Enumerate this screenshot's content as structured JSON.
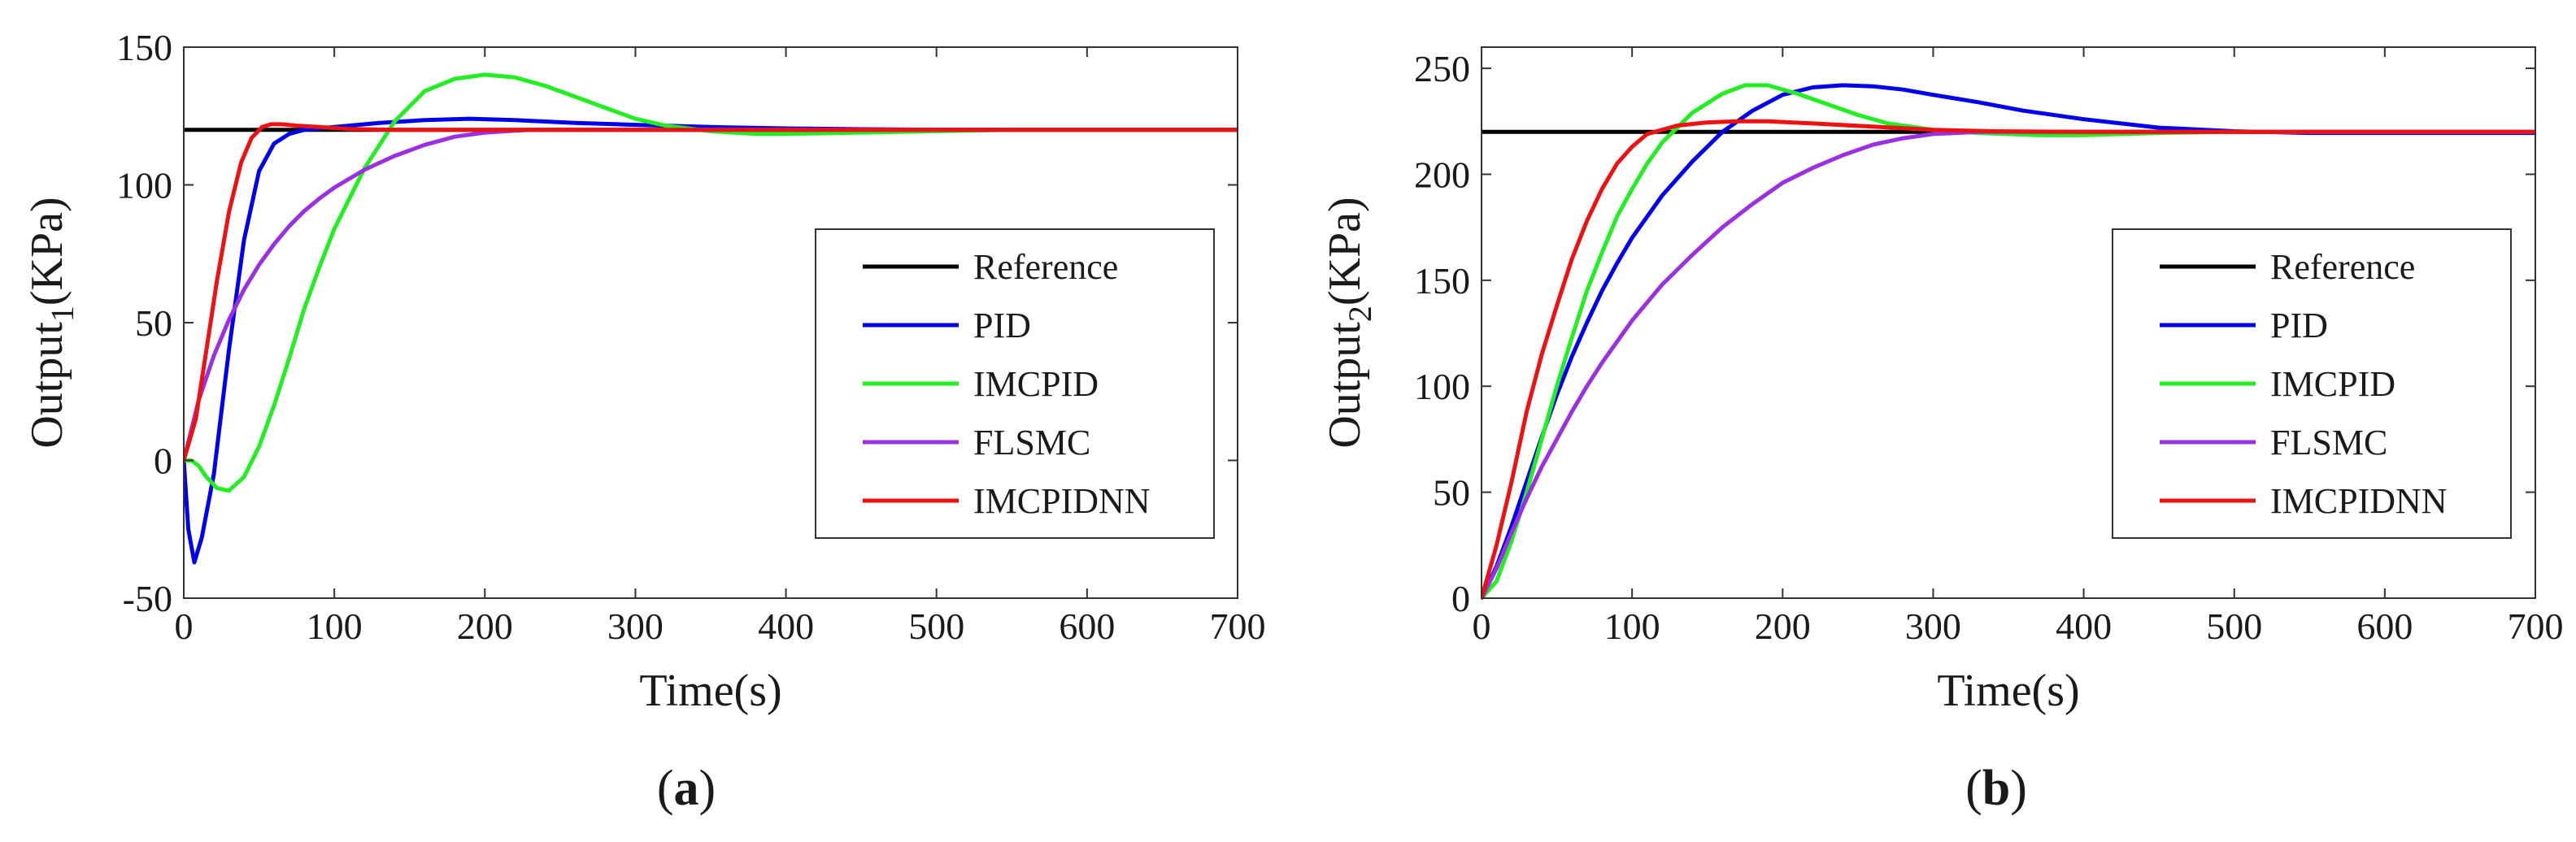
{
  "chart_data": [
    {
      "type": "line",
      "panel_label": "a",
      "xlabel": "Time(s)",
      "ylabel": {
        "prefix": "Output",
        "subscript": "1",
        "suffix": "(KPa)"
      },
      "xlim": [
        0,
        700
      ],
      "ylim": [
        -50,
        150
      ],
      "xticks": [
        "0",
        "100",
        "200",
        "300",
        "400",
        "500",
        "600",
        "700"
      ],
      "yticks": [
        "-50",
        "0",
        "50",
        "100",
        "150"
      ],
      "grid": false,
      "legend_position": "center-right",
      "series": [
        {
          "name": "Reference",
          "color": "#000000",
          "points": [
            [
              0,
              120
            ],
            [
              700,
              120
            ]
          ]
        },
        {
          "name": "PID",
          "color": "#0000ee",
          "points": [
            [
              0,
              0
            ],
            [
              3,
              -25
            ],
            [
              7,
              -37
            ],
            [
              12,
              -28
            ],
            [
              20,
              -5
            ],
            [
              30,
              40
            ],
            [
              40,
              80
            ],
            [
              50,
              105
            ],
            [
              60,
              115
            ],
            [
              70,
              118.5
            ],
            [
              80,
              120
            ],
            [
              100,
              121
            ],
            [
              130,
              122.5
            ],
            [
              160,
              123.5
            ],
            [
              190,
              124
            ],
            [
              220,
              123.5
            ],
            [
              260,
              122.5
            ],
            [
              300,
              121.8
            ],
            [
              350,
              121
            ],
            [
              400,
              120.5
            ],
            [
              450,
              120.2
            ],
            [
              500,
              120
            ],
            [
              550,
              120
            ],
            [
              700,
              120
            ]
          ]
        },
        {
          "name": "IMCPID",
          "color": "#22ee22",
          "points": [
            [
              0,
              0
            ],
            [
              5,
              0
            ],
            [
              10,
              -2
            ],
            [
              15,
              -6
            ],
            [
              22,
              -10
            ],
            [
              30,
              -11
            ],
            [
              40,
              -6
            ],
            [
              50,
              5
            ],
            [
              60,
              20
            ],
            [
              70,
              37
            ],
            [
              80,
              55
            ],
            [
              90,
              70
            ],
            [
              100,
              84
            ],
            [
              120,
              106
            ],
            [
              140,
              123
            ],
            [
              160,
              134
            ],
            [
              180,
              138.5
            ],
            [
              200,
              140
            ],
            [
              220,
              139
            ],
            [
              240,
              136
            ],
            [
              260,
              132
            ],
            [
              280,
              128
            ],
            [
              300,
              124
            ],
            [
              320,
              121.5
            ],
            [
              350,
              119.5
            ],
            [
              380,
              118.5
            ],
            [
              400,
              118.5
            ],
            [
              450,
              119
            ],
            [
              500,
              119.5
            ],
            [
              550,
              120
            ],
            [
              700,
              120
            ]
          ]
        },
        {
          "name": "FLSMC",
          "color": "#9b30e0",
          "points": [
            [
              0,
              0
            ],
            [
              10,
              22
            ],
            [
              20,
              38
            ],
            [
              30,
              51
            ],
            [
              40,
              62
            ],
            [
              50,
              71
            ],
            [
              60,
              78.5
            ],
            [
              70,
              85
            ],
            [
              80,
              90.5
            ],
            [
              90,
              95
            ],
            [
              100,
              99
            ],
            [
              120,
              105.5
            ],
            [
              140,
              110.5
            ],
            [
              160,
              114.5
            ],
            [
              180,
              117.5
            ],
            [
              200,
              119
            ],
            [
              230,
              120
            ],
            [
              700,
              120
            ]
          ]
        },
        {
          "name": "IMCPIDNN",
          "color": "#ee1111",
          "points": [
            [
              0,
              0
            ],
            [
              8,
              15
            ],
            [
              15,
              40
            ],
            [
              22,
              65
            ],
            [
              30,
              90
            ],
            [
              38,
              108
            ],
            [
              45,
              117
            ],
            [
              52,
              121
            ],
            [
              58,
              122
            ],
            [
              65,
              122
            ],
            [
              75,
              121.5
            ],
            [
              90,
              121
            ],
            [
              110,
              120.3
            ],
            [
              140,
              120
            ],
            [
              700,
              120
            ]
          ]
        }
      ]
    },
    {
      "type": "line",
      "panel_label": "b",
      "xlabel": "Time(s)",
      "ylabel": {
        "prefix": "Output",
        "subscript": "2",
        "suffix": "(KPa)"
      },
      "xlim": [
        0,
        700
      ],
      "ylim": [
        0,
        260
      ],
      "xticks": [
        "0",
        "100",
        "200",
        "300",
        "400",
        "500",
        "600",
        "700"
      ],
      "yticks": [
        "0",
        "50",
        "100",
        "150",
        "200",
        "250"
      ],
      "grid": false,
      "legend_position": "center-right",
      "series": [
        {
          "name": "Reference",
          "color": "#000000",
          "points": [
            [
              0,
              220
            ],
            [
              700,
              220
            ]
          ]
        },
        {
          "name": "PID",
          "color": "#0000ee",
          "points": [
            [
              0,
              0
            ],
            [
              10,
              15
            ],
            [
              20,
              34
            ],
            [
              30,
              55
            ],
            [
              40,
              76
            ],
            [
              50,
              96
            ],
            [
              60,
              114
            ],
            [
              70,
              130
            ],
            [
              80,
              145
            ],
            [
              90,
              158
            ],
            [
              100,
              170
            ],
            [
              120,
              190
            ],
            [
              140,
              206
            ],
            [
              160,
              220
            ],
            [
              180,
              230
            ],
            [
              200,
              237.5
            ],
            [
              220,
              241
            ],
            [
              240,
              242
            ],
            [
              260,
              241.5
            ],
            [
              280,
              240
            ],
            [
              300,
              237.5
            ],
            [
              330,
              234
            ],
            [
              360,
              230
            ],
            [
              400,
              226
            ],
            [
              450,
              222
            ],
            [
              500,
              220.3
            ],
            [
              550,
              219.5
            ],
            [
              600,
              219.5
            ],
            [
              650,
              219.5
            ],
            [
              700,
              219.5
            ]
          ]
        },
        {
          "name": "IMCPID",
          "color": "#22ee22",
          "points": [
            [
              0,
              0
            ],
            [
              10,
              8
            ],
            [
              20,
              27
            ],
            [
              30,
              50
            ],
            [
              40,
              75
            ],
            [
              50,
              100
            ],
            [
              60,
              123
            ],
            [
              70,
              145
            ],
            [
              80,
              163
            ],
            [
              90,
              180
            ],
            [
              100,
              193
            ],
            [
              110,
              205
            ],
            [
              120,
              215
            ],
            [
              140,
              229
            ],
            [
              160,
              238
            ],
            [
              175,
              242
            ],
            [
              190,
              242
            ],
            [
              210,
              238
            ],
            [
              230,
              233
            ],
            [
              250,
              228
            ],
            [
              270,
              224
            ],
            [
              300,
              221
            ],
            [
              330,
              219.5
            ],
            [
              370,
              218.5
            ],
            [
              400,
              218.5
            ],
            [
              450,
              219.5
            ],
            [
              500,
              220
            ],
            [
              700,
              220
            ]
          ]
        },
        {
          "name": "FLSMC",
          "color": "#9b30e0",
          "points": [
            [
              0,
              0
            ],
            [
              10,
              14
            ],
            [
              20,
              31
            ],
            [
              30,
              47
            ],
            [
              40,
              62
            ],
            [
              50,
              75
            ],
            [
              60,
              88
            ],
            [
              70,
              100
            ],
            [
              80,
              111
            ],
            [
              90,
              121
            ],
            [
              100,
              131
            ],
            [
              120,
              148
            ],
            [
              140,
              162
            ],
            [
              160,
              175
            ],
            [
              180,
              186
            ],
            [
              200,
              196
            ],
            [
              220,
              203
            ],
            [
              240,
              209
            ],
            [
              260,
              214
            ],
            [
              280,
              217
            ],
            [
              300,
              219
            ],
            [
              330,
              220
            ],
            [
              700,
              220
            ]
          ]
        },
        {
          "name": "IMCPIDNN",
          "color": "#ee1111",
          "points": [
            [
              0,
              0
            ],
            [
              10,
              25
            ],
            [
              20,
              55
            ],
            [
              30,
              88
            ],
            [
              40,
              115
            ],
            [
              50,
              138
            ],
            [
              60,
              160
            ],
            [
              70,
              178
            ],
            [
              80,
              193
            ],
            [
              90,
              205
            ],
            [
              100,
              213
            ],
            [
              110,
              219
            ],
            [
              130,
              223
            ],
            [
              150,
              224.5
            ],
            [
              170,
              225
            ],
            [
              190,
              225
            ],
            [
              220,
              224
            ],
            [
              260,
              222.5
            ],
            [
              300,
              221
            ],
            [
              340,
              220.3
            ],
            [
              400,
              220
            ],
            [
              700,
              220
            ]
          ]
        }
      ]
    }
  ]
}
